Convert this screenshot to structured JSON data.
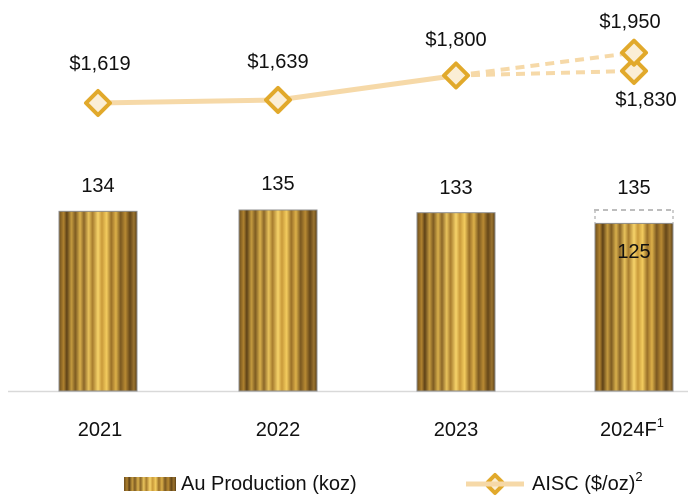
{
  "chart_data": {
    "type": "bar",
    "categories": [
      "2021",
      "2022",
      "2023",
      "2024F"
    ],
    "category_superscripts": [
      "",
      "",
      "",
      "1"
    ],
    "series": [
      {
        "name": "Au Production (koz)",
        "kind": "bar",
        "values": [
          134,
          135,
          133,
          125
        ],
        "labels": [
          "134",
          "135",
          "133",
          "125"
        ],
        "range_high": [
          null,
          null,
          null,
          135
        ],
        "range_high_labels": [
          "",
          "",
          "",
          "135"
        ]
      },
      {
        "name": "AISC ($/oz)",
        "name_superscript": "2",
        "kind": "line",
        "values": [
          1619,
          1639,
          1800,
          1830
        ],
        "labels": [
          "$1,619",
          "$1,639",
          "$1,800",
          "$1,830"
        ],
        "forecast_high": [
          null,
          null,
          null,
          1950
        ],
        "forecast_high_labels": [
          "",
          "",
          "",
          "$1,950"
        ]
      }
    ],
    "colors": {
      "bar_dark": "#7a5a22",
      "bar_light": "#f3c955",
      "line": "#f6d9a8",
      "marker_stroke": "#e1a92b",
      "marker_fill": "#fbeed5",
      "dashed_guide": "#bdbdbd",
      "axis": "#d9d9d9"
    },
    "legend_position": "bottom",
    "grid": false
  }
}
